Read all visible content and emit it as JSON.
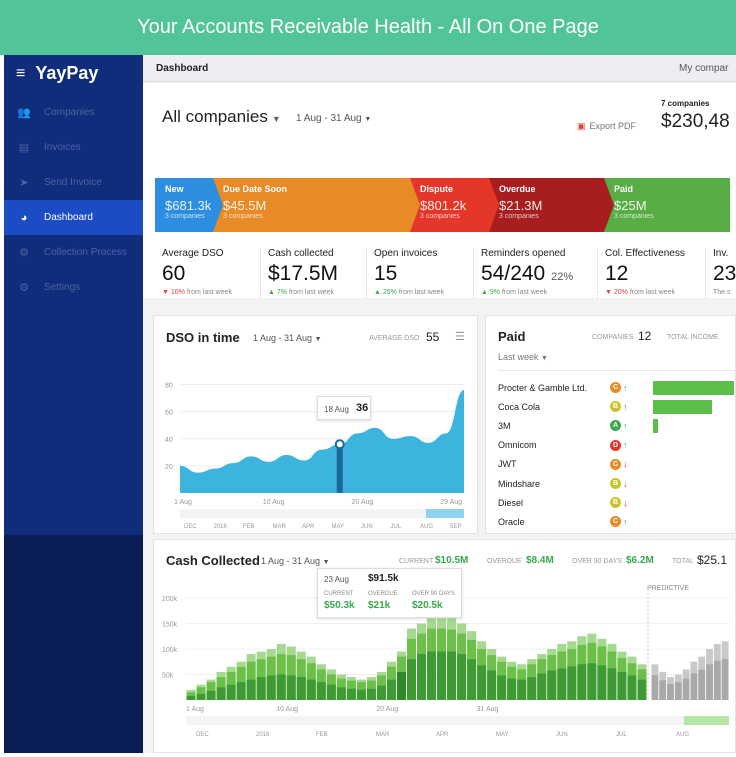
{
  "banner": {
    "title": "Your Accounts Receivable Health - All On One Page"
  },
  "sidebar": {
    "logo": "YayPay",
    "menu_icon": "hamburger-icon",
    "items": [
      {
        "label": "Companies",
        "icon": "users-icon",
        "glyph": "👥"
      },
      {
        "label": "Invoices",
        "icon": "document-icon",
        "glyph": "▤"
      },
      {
        "label": "Send Invoice",
        "icon": "paper-plane-icon",
        "glyph": "➤"
      },
      {
        "label": "Dashboard",
        "icon": "pie-chart-icon",
        "glyph": "◕"
      },
      {
        "label": "Collection Process",
        "icon": "cogs-icon",
        "glyph": "⚙"
      },
      {
        "label": "Settings",
        "icon": "gear-icon",
        "glyph": "⚙"
      }
    ],
    "active_index": 3
  },
  "topbar": {
    "title": "Dashboard",
    "right": "My compar"
  },
  "header": {
    "scope": "All companies",
    "date_range": "1 Aug - 31 Aug",
    "export": "Export PDF",
    "total_companies": "7 companies",
    "total_value": "$230,48"
  },
  "pipeline": [
    {
      "name": "New",
      "value": "$681.3k",
      "count": "3 companies",
      "color": "#2d8de0"
    },
    {
      "name": "Due Date Soon",
      "value": "$45.5M",
      "count": "3 companies",
      "color": "#e88a25"
    },
    {
      "name": "Dispute",
      "value": "$801.2k",
      "count": "3 companies",
      "color": "#e5362a"
    },
    {
      "name": "Overdue",
      "value": "$21.3M",
      "count": "3 companies",
      "color": "#a81d1d"
    },
    {
      "name": "Paid",
      "value": "$25M",
      "count": "3 companies",
      "color": "#58ad45"
    }
  ],
  "kpis": [
    {
      "label": "Average DSO",
      "value": "60",
      "sub": "",
      "arrow": "▼",
      "delta": "10%",
      "trend": "dn",
      "note": "from last week"
    },
    {
      "label": "Cash collected",
      "value": "$17.5M",
      "sub": "",
      "arrow": "▲",
      "delta": "7%",
      "trend": "up",
      "note": "from last week"
    },
    {
      "label": "Open invoices",
      "value": "15",
      "sub": "",
      "arrow": "▲",
      "delta": "25%",
      "trend": "up",
      "note": "from last week"
    },
    {
      "label": "Reminders opened",
      "value": "54/240",
      "sub": "22%",
      "arrow": "▲",
      "delta": "9%",
      "trend": "up",
      "note": "from last week"
    },
    {
      "label": "Col. Effectiveness",
      "value": "12",
      "sub": "",
      "arrow": "▼",
      "delta": "20%",
      "trend": "dn",
      "note": "from last week"
    },
    {
      "label": "Inv.",
      "value": "23",
      "sub": "",
      "arrow": "",
      "delta": "",
      "trend": "up",
      "note": "The s"
    }
  ],
  "dso": {
    "title": "DSO in time",
    "date_range": "1 Aug - 31 Aug",
    "avg_label": "AVERAGE DSO",
    "avg_value": "55",
    "menu_icon": "menu-icon",
    "tooltip_date": "18 Aug",
    "tooltip_value": "36",
    "nav_labels": [
      "DEC",
      "2016",
      "FEB",
      "MAR",
      "APR",
      "MAY",
      "JUN",
      "JUL",
      "AUG",
      "SEP"
    ]
  },
  "paid": {
    "title": "Paid",
    "period": "Last week",
    "companies_label": "COMPANIES",
    "companies_value": "12",
    "income_label": "TOTAL INCOME",
    "rows": [
      {
        "name": "Procter & Gamble Ltd.",
        "grade": "C",
        "trend": "↑",
        "bar": 0.9
      },
      {
        "name": "Coca Cola",
        "grade": "B",
        "trend": "↑",
        "bar": 0.66
      },
      {
        "name": "3M",
        "grade": "A",
        "trend": "↑",
        "bar": 0.05
      },
      {
        "name": "Omnicom",
        "grade": "D",
        "trend": "↑",
        "bar": 0
      },
      {
        "name": "JWT",
        "grade": "C",
        "trend": "↓",
        "bar": 0
      },
      {
        "name": "Mindshare",
        "grade": "B",
        "trend": "↓",
        "bar": 0
      },
      {
        "name": "Diesel",
        "grade": "B",
        "trend": "↓",
        "bar": 0
      },
      {
        "name": "Oracle",
        "grade": "C",
        "trend": "↑",
        "bar": 0
      }
    ]
  },
  "cash": {
    "title": "Cash Collected",
    "date_range": "1 Aug - 31 Aug",
    "current_label": "CURRENT",
    "current_value": "$10.5M",
    "overdue_label": "OVERDUE",
    "overdue_value": "$8.4M",
    "over90_label": "OVER 90 DAYS",
    "over90_value": "$6.2M",
    "total_label": "TOTAL",
    "total_value": "$25.1",
    "predictive": "PREDICTIVE",
    "tooltip": {
      "date": "23 Aug",
      "total": "$91.5k",
      "current_label": "CURRENT",
      "current": "$50.3k",
      "overdue_label": "OVERDUE",
      "overdue": "$21k",
      "over90_label": "OVER 90 DAYS",
      "over90": "$20.5k"
    },
    "nav_labels": [
      "DEC",
      "2016",
      "FEB",
      "MAR",
      "APR",
      "MAY",
      "JUN",
      "JUL",
      "AUG"
    ]
  },
  "chart_data": [
    {
      "type": "area",
      "title": "DSO in time",
      "x": [
        "1 Aug",
        "3 Aug",
        "5 Aug",
        "7 Aug",
        "9 Aug",
        "10 Aug",
        "12 Aug",
        "14 Aug",
        "16 Aug",
        "18 Aug",
        "20 Aug",
        "22 Aug",
        "24 Aug",
        "26 Aug",
        "28 Aug",
        "29 Aug",
        "31 Aug"
      ],
      "y": [
        20,
        15,
        18,
        22,
        27,
        23,
        28,
        24,
        32,
        36,
        44,
        48,
        40,
        42,
        37,
        44,
        76
      ],
      "tick_labels": [
        "1 Aug",
        "10 Aug",
        "20 Aug",
        "29 Aug"
      ],
      "yticks": [
        20,
        40,
        60,
        80
      ],
      "ylim": [
        0,
        90
      ],
      "color": "#3cb4de"
    },
    {
      "type": "bar",
      "title": "Cash Collected",
      "ylim": [
        0,
        200
      ],
      "yticks": [
        "50k",
        "100k",
        "150k",
        "200k"
      ],
      "xticks": [
        "1 Aug",
        "10 Aug",
        "20 Aug",
        "31 Aug"
      ],
      "series": [
        {
          "name": "CURRENT",
          "color": "#a4d98f",
          "values": [
            20,
            30,
            40,
            55,
            65,
            75,
            90,
            95,
            100,
            110,
            105,
            95,
            85,
            70,
            60,
            50,
            45,
            40,
            45,
            55,
            75,
            95,
            140,
            150,
            160,
            160,
            160,
            150,
            135,
            115,
            100,
            85,
            75,
            70,
            80,
            90,
            100,
            110,
            115,
            125,
            130,
            120,
            110,
            95,
            85,
            70
          ]
        },
        {
          "name": "OVERDUE",
          "color": "#6cc04a",
          "values": [
            15,
            25,
            35,
            45,
            55,
            65,
            75,
            80,
            85,
            90,
            88,
            80,
            72,
            60,
            50,
            42,
            38,
            35,
            38,
            48,
            65,
            85,
            120,
            130,
            140,
            140,
            138,
            130,
            118,
            100,
            88,
            75,
            65,
            60,
            70,
            80,
            88,
            95,
            100,
            108,
            112,
            105,
            95,
            82,
            72,
            60
          ]
        },
        {
          "name": "OVER 90 DAYS",
          "color": "#3e9b33",
          "values": [
            8,
            12,
            18,
            25,
            30,
            35,
            40,
            45,
            48,
            50,
            48,
            45,
            40,
            35,
            30,
            25,
            22,
            20,
            22,
            28,
            40,
            55,
            80,
            90,
            95,
            95,
            95,
            90,
            80,
            68,
            58,
            48,
            42,
            40,
            45,
            52,
            58,
            62,
            66,
            70,
            72,
            68,
            62,
            55,
            48,
            40
          ]
        }
      ],
      "predictive": [
        70,
        55,
        45,
        50,
        60,
        75,
        85,
        100,
        110,
        115
      ]
    }
  ]
}
